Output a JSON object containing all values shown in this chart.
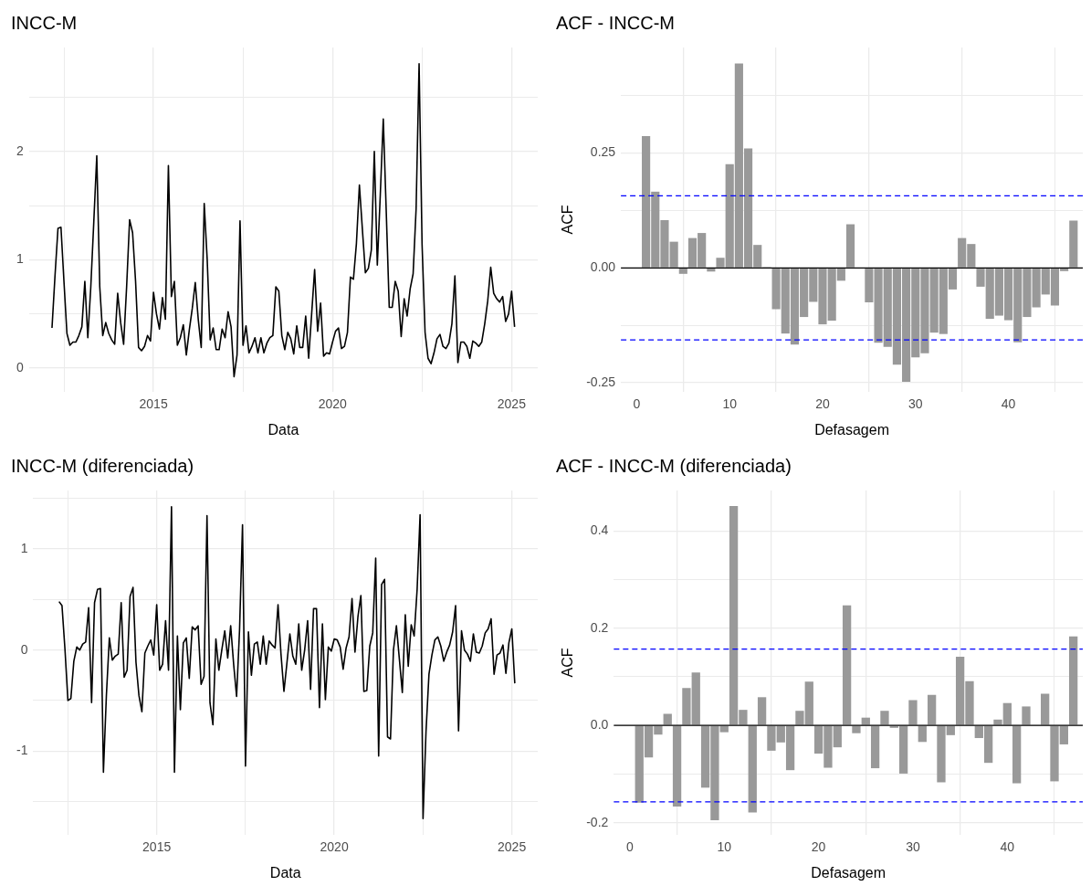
{
  "chart_data": [
    {
      "type": "line",
      "title": "INCC-M",
      "xlabel": "Data",
      "x": [
        "2012-03",
        "2012-04",
        "2012-05",
        "2012-06",
        "2012-07",
        "2012-08",
        "2012-09",
        "2012-10",
        "2012-11",
        "2012-12",
        "2013-01",
        "2013-02",
        "2013-03",
        "2013-04",
        "2013-05",
        "2013-06",
        "2013-07",
        "2013-08",
        "2013-09",
        "2013-10",
        "2013-11",
        "2013-12",
        "2014-01",
        "2014-02",
        "2014-03",
        "2014-04",
        "2014-05",
        "2014-06",
        "2014-07",
        "2014-08",
        "2014-09",
        "2014-10",
        "2014-11",
        "2014-12",
        "2015-01",
        "2015-02",
        "2015-03",
        "2015-04",
        "2015-05",
        "2015-06",
        "2015-07",
        "2015-08",
        "2015-09",
        "2015-10",
        "2015-11",
        "2015-12",
        "2016-01",
        "2016-02",
        "2016-03",
        "2016-04",
        "2016-05",
        "2016-06",
        "2016-07",
        "2016-08",
        "2016-09",
        "2016-10",
        "2016-11",
        "2016-12",
        "2017-01",
        "2017-02",
        "2017-03",
        "2017-04",
        "2017-05",
        "2017-06",
        "2017-07",
        "2017-08",
        "2017-09",
        "2017-10",
        "2017-11",
        "2017-12",
        "2018-01",
        "2018-02",
        "2018-03",
        "2018-04",
        "2018-05",
        "2018-06",
        "2018-07",
        "2018-08",
        "2018-09",
        "2018-10",
        "2018-11",
        "2018-12",
        "2019-01",
        "2019-02",
        "2019-03",
        "2019-04",
        "2019-05",
        "2019-06",
        "2019-07",
        "2019-08",
        "2019-09",
        "2019-10",
        "2019-11",
        "2019-12",
        "2020-01",
        "2020-02",
        "2020-03",
        "2020-04",
        "2020-05",
        "2020-06",
        "2020-07",
        "2020-08",
        "2020-09",
        "2020-10",
        "2020-11",
        "2020-12",
        "2021-01",
        "2021-02",
        "2021-03",
        "2021-04",
        "2021-05",
        "2021-06",
        "2021-07",
        "2021-08",
        "2021-09",
        "2021-10",
        "2021-11",
        "2021-12",
        "2022-01",
        "2022-02",
        "2022-03",
        "2022-04",
        "2022-05",
        "2022-06",
        "2022-07",
        "2022-08",
        "2022-09",
        "2022-10",
        "2022-11",
        "2022-12",
        "2023-01",
        "2023-02",
        "2023-03",
        "2023-04",
        "2023-05",
        "2023-06",
        "2023-07",
        "2023-08",
        "2023-09",
        "2023-10",
        "2023-11",
        "2023-12",
        "2024-01",
        "2024-02",
        "2024-03",
        "2024-04",
        "2024-05",
        "2024-06",
        "2024-07",
        "2024-08",
        "2024-09",
        "2024-10",
        "2024-11",
        "2024-12",
        "2025-01",
        "2025-02"
      ],
      "series": [
        {
          "color": "#000000",
          "values": [
            0.37,
            0.85,
            1.29,
            1.3,
            0.8,
            0.32,
            0.21,
            0.24,
            0.24,
            0.3,
            0.38,
            0.8,
            0.28,
            0.75,
            1.35,
            1.96,
            0.75,
            0.3,
            0.42,
            0.32,
            0.26,
            0.22,
            0.69,
            0.42,
            0.22,
            0.75,
            1.37,
            1.25,
            0.8,
            0.19,
            0.16,
            0.2,
            0.3,
            0.25,
            0.7,
            0.5,
            0.36,
            0.65,
            0.45,
            1.87,
            0.66,
            0.8,
            0.21,
            0.28,
            0.4,
            0.12,
            0.35,
            0.55,
            0.79,
            0.45,
            0.19,
            1.52,
            1.0,
            0.26,
            0.37,
            0.17,
            0.17,
            0.36,
            0.28,
            0.52,
            0.38,
            -0.08,
            0.12,
            1.36,
            0.21,
            0.39,
            0.14,
            0.2,
            0.28,
            0.14,
            0.28,
            0.14,
            0.23,
            0.28,
            0.3,
            0.75,
            0.71,
            0.3,
            0.17,
            0.33,
            0.27,
            0.13,
            0.39,
            0.19,
            0.19,
            0.48,
            0.09,
            0.5,
            0.91,
            0.34,
            0.6,
            0.11,
            0.14,
            0.13,
            0.24,
            0.34,
            0.37,
            0.18,
            0.2,
            0.33,
            0.84,
            0.82,
            1.15,
            1.69,
            1.28,
            0.88,
            0.92,
            1.09,
            2.0,
            0.95,
            1.6,
            2.3,
            1.44,
            0.56,
            0.56,
            0.8,
            0.71,
            0.29,
            0.64,
            0.48,
            0.73,
            0.87,
            1.47,
            2.81,
            1.14,
            0.33,
            0.09,
            0.04,
            0.14,
            0.27,
            0.31,
            0.2,
            0.18,
            0.23,
            0.41,
            0.85,
            0.05,
            0.24,
            0.24,
            0.2,
            0.09,
            0.25,
            0.23,
            0.2,
            0.24,
            0.41,
            0.62,
            0.93,
            0.69,
            0.64,
            0.61,
            0.66,
            0.43,
            0.5,
            0.71,
            0.38
          ]
        }
      ],
      "xlim": [
        "2011-07-10",
        "2025-09-24"
      ],
      "xticks": [
        {
          "value": "2012-07-02",
          "label": null
        },
        "2015",
        {
          "value": "2017-07-02",
          "label": null
        },
        "2020",
        {
          "value": "2022-07-02",
          "label": null
        },
        "2025"
      ],
      "ylim": [
        -0.22,
        2.96
      ],
      "yticks": [
        0,
        {
          "value": 0.5,
          "label": null
        },
        1,
        {
          "value": 1.5,
          "label": null
        },
        2,
        {
          "value": 2.5,
          "label": null
        }
      ],
      "grid": true
    },
    {
      "type": "bar",
      "title": "ACF - INCC-M",
      "xlabel": "Defasagem",
      "ylabel": "ACF",
      "x": [
        1,
        2,
        3,
        4,
        5,
        6,
        7,
        8,
        9,
        10,
        11,
        12,
        13,
        14,
        15,
        16,
        17,
        18,
        19,
        20,
        21,
        22,
        23,
        24,
        25,
        26,
        27,
        28,
        29,
        30,
        31,
        32,
        33,
        34,
        35,
        36,
        37,
        38,
        39,
        40,
        41,
        42,
        43,
        44,
        45,
        46,
        47
      ],
      "series": [
        {
          "color": "#999999",
          "values": [
            0.287,
            0.166,
            0.104,
            0.057,
            -0.013,
            0.065,
            0.076,
            -0.008,
            0.022,
            0.226,
            0.445,
            0.26,
            0.05,
            0.002,
            -0.09,
            -0.143,
            -0.167,
            -0.107,
            -0.074,
            -0.123,
            -0.115,
            -0.028,
            0.095,
            0.0,
            -0.075,
            -0.163,
            -0.172,
            -0.211,
            -0.248,
            -0.195,
            -0.186,
            -0.141,
            -0.144,
            -0.047,
            0.065,
            0.052,
            -0.041,
            -0.111,
            -0.104,
            -0.114,
            -0.162,
            -0.107,
            -0.086,
            -0.058,
            -0.082,
            -0.007,
            0.103
          ]
        }
      ],
      "xlim": [
        -1.7,
        48
      ],
      "xticks": [
        0,
        10,
        20,
        30,
        40
      ],
      "ylim": [
        -0.27,
        0.48
      ],
      "yticks": [
        -0.25,
        {
          "value": -0.125,
          "label": null
        },
        {
          "value": 0,
          "label": "0.00"
        },
        {
          "value": 0.125,
          "label": null
        },
        0.25,
        {
          "value": 0.375,
          "label": null
        }
      ],
      "ref_lines": [
        {
          "axis": "y",
          "value": 0.157,
          "color": "#0000ff",
          "line_style": "dashed"
        },
        {
          "axis": "y",
          "value": -0.157,
          "color": "#0000ff",
          "line_style": "dashed"
        },
        {
          "axis": "y",
          "value": 0,
          "color": "#000000",
          "line_style": "solid"
        }
      ],
      "grid": true
    },
    {
      "type": "line",
      "title": "INCC-M (diferenciada)",
      "xlabel": "Data",
      "x": [
        "2012-04",
        "2012-05",
        "2012-06",
        "2012-07",
        "2012-08",
        "2012-09",
        "2012-10",
        "2012-11",
        "2012-12",
        "2013-01",
        "2013-02",
        "2013-03",
        "2013-04",
        "2013-05",
        "2013-06",
        "2013-07",
        "2013-08",
        "2013-09",
        "2013-10",
        "2013-11",
        "2013-12",
        "2014-01",
        "2014-02",
        "2014-03",
        "2014-04",
        "2014-05",
        "2014-06",
        "2014-07",
        "2014-08",
        "2014-09",
        "2014-10",
        "2014-11",
        "2014-12",
        "2015-01",
        "2015-02",
        "2015-03",
        "2015-04",
        "2015-05",
        "2015-06",
        "2015-07",
        "2015-08",
        "2015-09",
        "2015-10",
        "2015-11",
        "2015-12",
        "2016-01",
        "2016-02",
        "2016-03",
        "2016-04",
        "2016-05",
        "2016-06",
        "2016-07",
        "2016-08",
        "2016-09",
        "2016-10",
        "2016-11",
        "2016-12",
        "2017-01",
        "2017-02",
        "2017-03",
        "2017-04",
        "2017-05",
        "2017-06",
        "2017-07",
        "2017-08",
        "2017-09",
        "2017-10",
        "2017-11",
        "2017-12",
        "2018-01",
        "2018-02",
        "2018-03",
        "2018-04",
        "2018-05",
        "2018-06",
        "2018-07",
        "2018-08",
        "2018-09",
        "2018-10",
        "2018-11",
        "2018-12",
        "2019-01",
        "2019-02",
        "2019-03",
        "2019-04",
        "2019-05",
        "2019-06",
        "2019-07",
        "2019-08",
        "2019-09",
        "2019-10",
        "2019-11",
        "2019-12",
        "2020-01",
        "2020-02",
        "2020-03",
        "2020-04",
        "2020-05",
        "2020-06",
        "2020-07",
        "2020-08",
        "2020-09",
        "2020-10",
        "2020-11",
        "2020-12",
        "2021-01",
        "2021-02",
        "2021-03",
        "2021-04",
        "2021-05",
        "2021-06",
        "2021-07",
        "2021-08",
        "2021-09",
        "2021-10",
        "2021-11",
        "2021-12",
        "2022-01",
        "2022-02",
        "2022-03",
        "2022-04",
        "2022-05",
        "2022-06",
        "2022-07",
        "2022-08",
        "2022-09",
        "2022-10",
        "2022-11",
        "2022-12",
        "2023-01",
        "2023-02",
        "2023-03",
        "2023-04",
        "2023-05",
        "2023-06",
        "2023-07",
        "2023-08",
        "2023-09",
        "2023-10",
        "2023-11",
        "2023-12",
        "2024-01",
        "2024-02",
        "2024-03",
        "2024-04",
        "2024-05",
        "2024-06",
        "2024-07",
        "2024-08",
        "2024-09",
        "2024-10",
        "2024-11",
        "2024-12",
        "2025-01",
        "2025-02"
      ],
      "series": [
        {
          "color": "#000000",
          "values": [
            0.48,
            0.44,
            0.01,
            -0.5,
            -0.48,
            -0.11,
            0.03,
            0.0,
            0.06,
            0.08,
            0.42,
            -0.52,
            0.47,
            0.6,
            0.61,
            -1.21,
            -0.45,
            0.12,
            -0.1,
            -0.06,
            -0.04,
            0.47,
            -0.27,
            -0.2,
            0.53,
            0.62,
            -0.12,
            -0.45,
            -0.61,
            -0.03,
            0.04,
            0.1,
            -0.05,
            0.45,
            -0.2,
            -0.14,
            0.29,
            -0.2,
            1.42,
            -1.21,
            0.14,
            -0.59,
            0.07,
            0.12,
            -0.28,
            0.23,
            0.2,
            0.24,
            -0.34,
            -0.26,
            1.33,
            -0.52,
            -0.74,
            0.11,
            -0.2,
            0.0,
            0.19,
            -0.08,
            0.24,
            -0.14,
            -0.46,
            0.2,
            1.24,
            -1.15,
            0.18,
            -0.25,
            0.06,
            0.08,
            -0.14,
            0.14,
            -0.14,
            0.09,
            0.05,
            0.02,
            0.45,
            -0.04,
            -0.41,
            -0.13,
            0.16,
            -0.06,
            -0.14,
            0.26,
            -0.2,
            0.0,
            0.29,
            -0.39,
            0.41,
            0.41,
            -0.57,
            0.26,
            -0.49,
            0.03,
            -0.01,
            0.11,
            0.1,
            0.03,
            -0.19,
            0.02,
            0.13,
            0.51,
            -0.02,
            0.33,
            0.54,
            -0.41,
            -0.4,
            0.04,
            0.17,
            0.91,
            -1.05,
            0.65,
            0.7,
            -0.86,
            -0.88,
            0.0,
            0.24,
            -0.09,
            -0.42,
            0.35,
            -0.16,
            0.25,
            0.14,
            0.6,
            1.34,
            -1.67,
            -0.81,
            -0.24,
            -0.05,
            0.1,
            0.13,
            0.04,
            -0.11,
            -0.02,
            0.05,
            0.18,
            0.44,
            -0.8,
            0.19,
            0.0,
            -0.04,
            -0.11,
            0.16,
            -0.02,
            -0.03,
            0.04,
            0.17,
            0.21,
            0.31,
            -0.24,
            -0.05,
            -0.03,
            0.05,
            -0.23,
            0.07,
            0.21,
            -0.33
          ]
        }
      ],
      "xlim": [
        "2011-07-10",
        "2025-09-24"
      ],
      "xticks": [
        {
          "value": "2012-07-02",
          "label": null
        },
        "2015",
        {
          "value": "2017-07-02",
          "label": null
        },
        "2020",
        {
          "value": "2022-07-02",
          "label": null
        },
        "2025"
      ],
      "ylim": [
        -1.83,
        1.58
      ],
      "yticks": [
        {
          "value": -1.5,
          "label": null
        },
        -1,
        {
          "value": -0.5,
          "label": null
        },
        0,
        {
          "value": 0.5,
          "label": null
        },
        1,
        {
          "value": 1.5,
          "label": null
        }
      ],
      "grid": true
    },
    {
      "type": "bar",
      "title": "ACF - INCC-M (diferenciada)",
      "xlabel": "Defasagem",
      "ylabel": "ACF",
      "x": [
        1,
        2,
        3,
        4,
        5,
        6,
        7,
        8,
        9,
        10,
        11,
        12,
        13,
        14,
        15,
        16,
        17,
        18,
        19,
        20,
        21,
        22,
        23,
        24,
        25,
        26,
        27,
        28,
        29,
        30,
        31,
        32,
        33,
        34,
        35,
        36,
        37,
        38,
        39,
        40,
        41,
        42,
        43,
        44,
        45,
        46,
        47
      ],
      "series": [
        {
          "color": "#999999",
          "values": [
            -0.159,
            -0.066,
            -0.019,
            0.024,
            -0.167,
            0.077,
            0.109,
            -0.128,
            -0.195,
            -0.014,
            0.451,
            0.032,
            -0.179,
            0.058,
            -0.052,
            -0.035,
            -0.092,
            0.03,
            0.09,
            -0.058,
            -0.087,
            -0.045,
            0.247,
            -0.016,
            0.016,
            -0.088,
            0.03,
            -0.005,
            -0.099,
            0.052,
            -0.034,
            0.063,
            -0.117,
            -0.02,
            0.141,
            0.091,
            -0.026,
            -0.077,
            0.012,
            0.046,
            -0.119,
            0.039,
            -0.001,
            0.065,
            -0.115,
            -0.039,
            0.183
          ]
        }
      ],
      "xlim": [
        -1.7,
        48
      ],
      "xticks": [
        0,
        10,
        20,
        30,
        40
      ],
      "ylim": [
        -0.225,
        0.483
      ],
      "yticks": [
        -0.2,
        {
          "value": -0.1,
          "label": null
        },
        {
          "value": 0,
          "label": "0.0"
        },
        {
          "value": 0.1,
          "label": null
        },
        0.2,
        {
          "value": 0.3,
          "label": null
        },
        0.4
      ],
      "ref_lines": [
        {
          "axis": "y",
          "value": 0.157,
          "color": "#0000ff",
          "line_style": "dashed"
        },
        {
          "axis": "y",
          "value": -0.157,
          "color": "#0000ff",
          "line_style": "dashed"
        },
        {
          "axis": "y",
          "value": 0,
          "color": "#000000",
          "line_style": "solid"
        }
      ],
      "grid": true
    }
  ]
}
